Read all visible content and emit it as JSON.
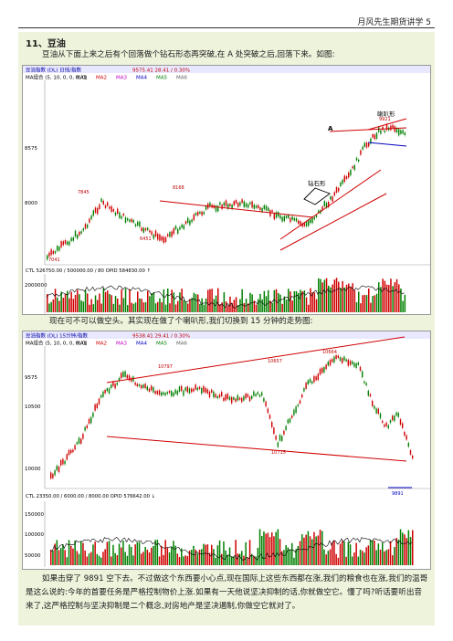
{
  "header": {
    "text": "月风先生期货讲学 5"
  },
  "section": {
    "title": "11、豆油",
    "p1": "豆油从下面上来之后有个回落做个钻石形态再突破,在 A 处突破之后,回落下来。如图:",
    "p2": "现在可不可以做空头。其实现在做了个喇叭形,我们切换到 15 分钟的走势图:",
    "p3": "如果击穿了 9891 空下去。不过做这个东西要小心点,现在国际上这些东西都在涨,我们的粮食也在涨,我们的温哥是这么说的:今年的首要任务是严格控制物价上涨.如果有一天他说坚决抑制的话,你就做空它。懂了吗?听话要听出音来了,这严格控制与坚决抑制是二个概念,对房地产是坚决遏制,你做空它就对了。"
  },
  "chart1": {
    "title_bar": "豆油指数 (DL) 日线/指数",
    "header_values": "9575.41   28.41 / 0.30%",
    "ma_line": "MA组合 (5, 10, 0, 0, 0, 0)",
    "ma_labels": [
      "MA1",
      "MA2",
      "MA3",
      "MA4",
      "MA5",
      "MA6"
    ],
    "ma_colors": [
      "#000000",
      "#d00000",
      "#c000c0",
      "#0000c0",
      "#008000",
      "#606060"
    ],
    "price_ticks": [
      "8575",
      "8000"
    ],
    "annotations": {
      "A": "A",
      "diamond": "钻石形",
      "trumpet": "喇叭形"
    },
    "price_labels": [
      "7845",
      "8168",
      "6451",
      "9921",
      "7041"
    ],
    "volume_line": "CTL   526750.00 / 500000.00 / 80   OPID   584830.00 ↑",
    "volume_ticks": [
      "2000000",
      "1000000"
    ]
  },
  "chart2": {
    "title_bar": "豆油指数 (DL) 15分钟/指数",
    "header_values": "9538.41   29.41 / 0.30%",
    "ma_line": "MA组合 (5, 10, 0, 0, 0, 0)",
    "ma_labels": [
      "MA1",
      "MA2",
      "MA3",
      "MA4",
      "MA5",
      "MA6"
    ],
    "price_ticks": [
      "9575",
      "10500",
      "10000"
    ],
    "price_labels": [
      "10797",
      "10657",
      "10664",
      "10715",
      "9891"
    ],
    "volume_line": "CTL   23350.00 / 6000.00 / 8000.00   OPID   576642.00 ↓",
    "volume_ticks": [
      "150000",
      "100000",
      "50000"
    ]
  }
}
